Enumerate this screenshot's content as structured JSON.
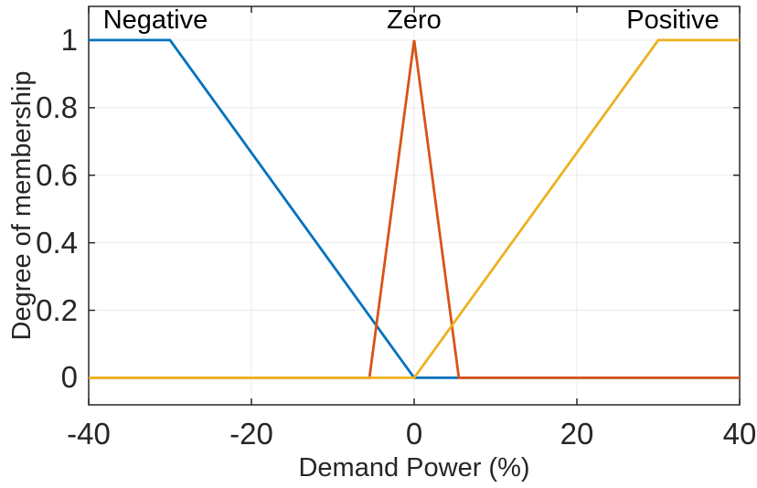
{
  "chart_data": {
    "type": "line",
    "title": "",
    "xlabel": "Demand Power (%)",
    "ylabel": "Degree of membership",
    "xlim": [
      -40,
      40
    ],
    "ylim": [
      -0.08,
      1.1
    ],
    "x_tick_labels": [
      "-40",
      "-20",
      "0",
      "20",
      "40"
    ],
    "x_tick_values": [
      -40,
      -20,
      0,
      20,
      40
    ],
    "y_tick_labels": [
      "0",
      "0.2",
      "0.4",
      "0.6",
      "0.8",
      "1"
    ],
    "y_tick_values": [
      0,
      0.2,
      0.4,
      0.6,
      0.8,
      1
    ],
    "grid": true,
    "legend_position": "inline-top-labels",
    "series": [
      {
        "name": "Negative",
        "color": "#0072BD",
        "label_x": -31.8,
        "points": [
          [
            -40,
            1
          ],
          [
            -30,
            1
          ],
          [
            0,
            0
          ],
          [
            40,
            0
          ]
        ]
      },
      {
        "name": "Zero",
        "color": "#D95319",
        "label_x": 0,
        "points": [
          [
            -40,
            0
          ],
          [
            -5.5,
            0
          ],
          [
            0,
            1
          ],
          [
            5.5,
            0
          ],
          [
            40,
            0
          ]
        ]
      },
      {
        "name": "Positive",
        "color": "#EDB120",
        "label_x": 31.8,
        "points": [
          [
            -40,
            0
          ],
          [
            0,
            0
          ],
          [
            30,
            1
          ],
          [
            40,
            1
          ]
        ]
      }
    ],
    "colors": {
      "background": "#ffffff",
      "grid": "#ebebeb",
      "axis": "#262626",
      "tick_text": "#262626",
      "annotation_text": "#000000"
    }
  }
}
